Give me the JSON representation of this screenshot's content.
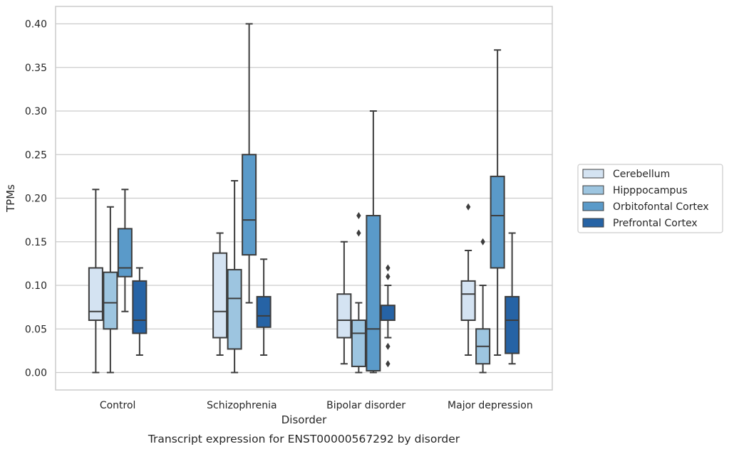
{
  "chart_data": {
    "type": "box",
    "title": "",
    "caption": "Transcript expression for ENST00000567292 by disorder",
    "xlabel": "Disorder",
    "ylabel": "TPMs",
    "ylim": [
      -0.02,
      0.42
    ],
    "yticks": [
      0.0,
      0.05,
      0.1,
      0.15,
      0.2,
      0.25,
      0.3,
      0.35,
      0.4
    ],
    "ytick_labels": [
      "0.00",
      "0.05",
      "0.10",
      "0.15",
      "0.20",
      "0.25",
      "0.30",
      "0.35",
      "0.40"
    ],
    "grid": "horizontal",
    "legend_position": "right",
    "categories": [
      "Control",
      "Schizophrenia",
      "Bipolar disorder",
      "Major depression"
    ],
    "series": [
      {
        "name": "Cerebellum",
        "color": "#d4e3f2",
        "boxes": [
          {
            "whislo": 0.0,
            "q1": 0.06,
            "median": 0.07,
            "q3": 0.12,
            "whishi": 0.21,
            "fliers": []
          },
          {
            "whislo": 0.02,
            "q1": 0.04,
            "median": 0.07,
            "q3": 0.137,
            "whishi": 0.16,
            "fliers": []
          },
          {
            "whislo": 0.01,
            "q1": 0.04,
            "median": 0.06,
            "q3": 0.09,
            "whishi": 0.15,
            "fliers": []
          },
          {
            "whislo": 0.02,
            "q1": 0.06,
            "median": 0.09,
            "q3": 0.105,
            "whishi": 0.14,
            "fliers": [
              0.19
            ]
          }
        ]
      },
      {
        "name": "Hipppocampus",
        "color": "#9dc5e0",
        "boxes": [
          {
            "whislo": 0.0,
            "q1": 0.05,
            "median": 0.08,
            "q3": 0.115,
            "whishi": 0.19,
            "fliers": []
          },
          {
            "whislo": 0.0,
            "q1": 0.027,
            "median": 0.085,
            "q3": 0.118,
            "whishi": 0.22,
            "fliers": []
          },
          {
            "whislo": 0.0,
            "q1": 0.007,
            "median": 0.045,
            "q3": 0.06,
            "whishi": 0.08,
            "fliers": [
              0.16,
              0.18
            ]
          },
          {
            "whislo": 0.0,
            "q1": 0.01,
            "median": 0.03,
            "q3": 0.05,
            "whishi": 0.1,
            "fliers": [
              0.15
            ]
          }
        ]
      },
      {
        "name": "Orbitofontal Cortex",
        "color": "#5a9ac9",
        "boxes": [
          {
            "whislo": 0.07,
            "q1": 0.11,
            "median": 0.12,
            "q3": 0.165,
            "whishi": 0.21,
            "fliers": []
          },
          {
            "whislo": 0.08,
            "q1": 0.135,
            "median": 0.175,
            "q3": 0.25,
            "whishi": 0.4,
            "fliers": []
          },
          {
            "whislo": 0.0,
            "q1": 0.002,
            "median": 0.05,
            "q3": 0.18,
            "whishi": 0.3,
            "fliers": []
          },
          {
            "whislo": 0.02,
            "q1": 0.12,
            "median": 0.18,
            "q3": 0.225,
            "whishi": 0.37,
            "fliers": []
          }
        ]
      },
      {
        "name": "Prefrontal Cortex",
        "color": "#2663a5",
        "boxes": [
          {
            "whislo": 0.02,
            "q1": 0.045,
            "median": 0.06,
            "q3": 0.105,
            "whishi": 0.12,
            "fliers": []
          },
          {
            "whislo": 0.02,
            "q1": 0.052,
            "median": 0.065,
            "q3": 0.087,
            "whishi": 0.13,
            "fliers": []
          },
          {
            "whislo": 0.04,
            "q1": 0.06,
            "median": 0.06,
            "q3": 0.077,
            "whishi": 0.1,
            "fliers": [
              0.01,
              0.03,
              0.11,
              0.12
            ]
          },
          {
            "whislo": 0.01,
            "q1": 0.022,
            "median": 0.06,
            "q3": 0.087,
            "whishi": 0.16,
            "fliers": []
          }
        ]
      }
    ]
  }
}
